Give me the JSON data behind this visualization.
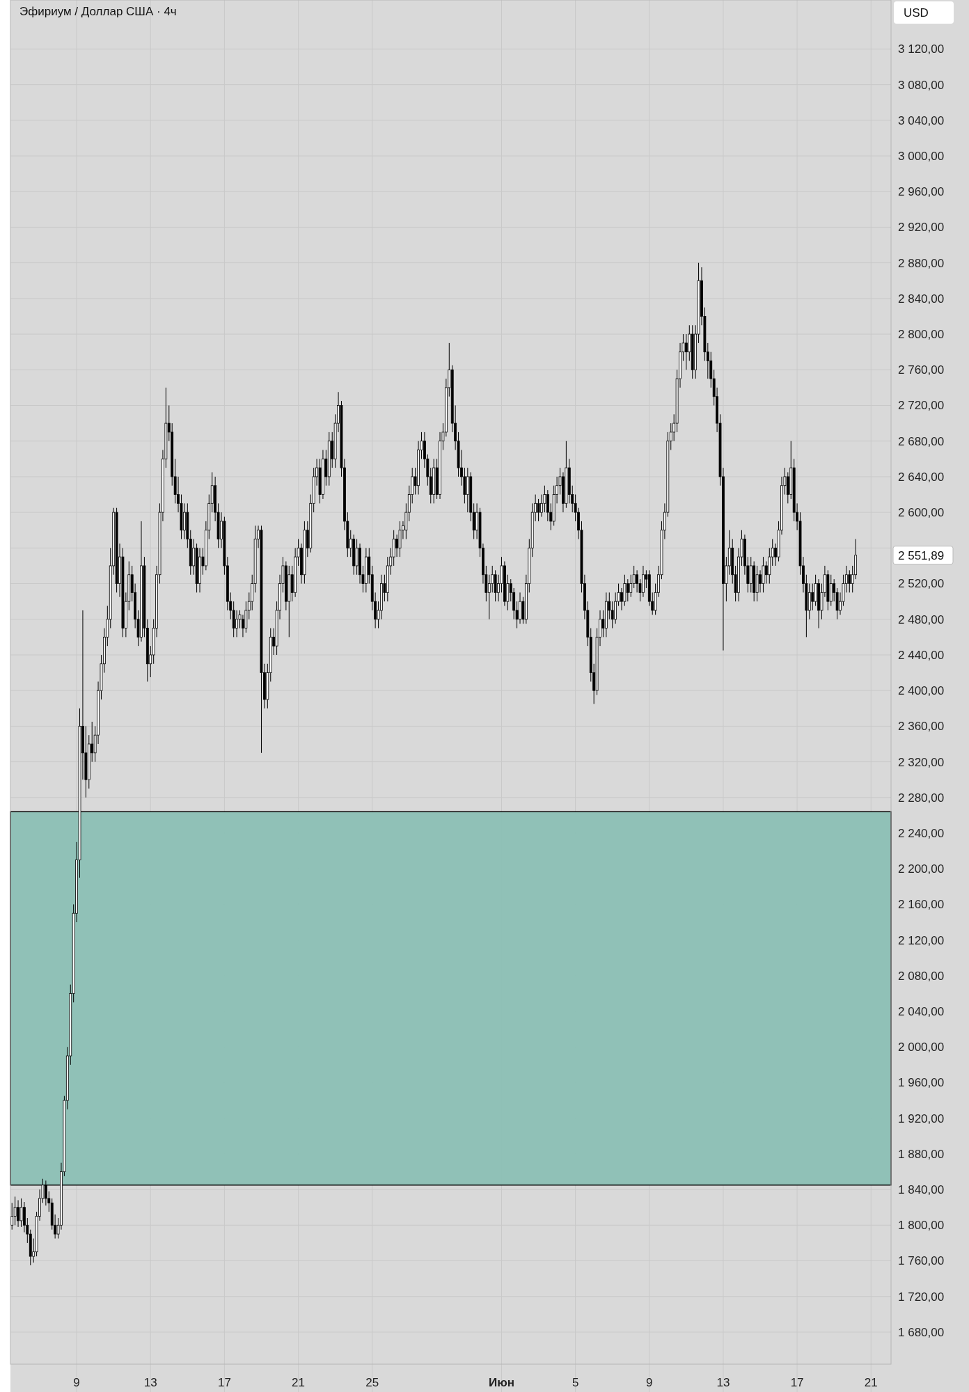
{
  "chart_data": {
    "type": "candlestick",
    "title": "Эфириум / Доллар США · 4ч",
    "ylabel": "USD",
    "grid": true,
    "ylim": [
      1644,
      3175
    ],
    "yticks": [
      {
        "value": 1680,
        "label": "1 680,00"
      },
      {
        "value": 1720,
        "label": "1 720,00"
      },
      {
        "value": 1760,
        "label": "1 760,00"
      },
      {
        "value": 1800,
        "label": "1 800,00"
      },
      {
        "value": 1840,
        "label": "1 840,00"
      },
      {
        "value": 1880,
        "label": "1 880,00"
      },
      {
        "value": 1920,
        "label": "1 920,00"
      },
      {
        "value": 1960,
        "label": "1 960,00"
      },
      {
        "value": 2000,
        "label": "2 000,00"
      },
      {
        "value": 2040,
        "label": "2 040,00"
      },
      {
        "value": 2080,
        "label": "2 080,00"
      },
      {
        "value": 2120,
        "label": "2 120,00"
      },
      {
        "value": 2160,
        "label": "2 160,00"
      },
      {
        "value": 2200,
        "label": "2 200,00"
      },
      {
        "value": 2240,
        "label": "2 240,00"
      },
      {
        "value": 2280,
        "label": "2 280,00"
      },
      {
        "value": 2320,
        "label": "2 320,00"
      },
      {
        "value": 2360,
        "label": "2 360,00"
      },
      {
        "value": 2400,
        "label": "2 400,00"
      },
      {
        "value": 2440,
        "label": "2 440,00"
      },
      {
        "value": 2480,
        "label": "2 480,00"
      },
      {
        "value": 2520,
        "label": "2 520,00"
      },
      {
        "value": 2560,
        "label": null
      },
      {
        "value": 2600,
        "label": "2 600,00"
      },
      {
        "value": 2640,
        "label": "2 640,00"
      },
      {
        "value": 2680,
        "label": "2 680,00"
      },
      {
        "value": 2720,
        "label": "2 720,00"
      },
      {
        "value": 2760,
        "label": "2 760,00"
      },
      {
        "value": 2800,
        "label": "2 800,00"
      },
      {
        "value": 2840,
        "label": "2 840,00"
      },
      {
        "value": 2880,
        "label": "2 880,00"
      },
      {
        "value": 2920,
        "label": "2 920,00"
      },
      {
        "value": 2960,
        "label": "2 960,00"
      },
      {
        "value": 3000,
        "label": "3 000,00"
      },
      {
        "value": 3040,
        "label": "3 040,00"
      },
      {
        "value": 3080,
        "label": "3 080,00"
      },
      {
        "value": 3120,
        "label": "3 120,00"
      }
    ],
    "bands": [
      {
        "axis": "y",
        "from": 1845,
        "to": 2264,
        "color": "#8cc0b5"
      }
    ],
    "annotations": [
      "2 551,89"
    ],
    "categories": [
      null,
      null,
      null,
      null,
      null,
      null,
      null,
      null,
      null,
      null,
      null,
      null,
      null,
      null,
      null,
      null,
      null,
      null,
      null,
      null,
      null,
      "9",
      null,
      null,
      null,
      null,
      null,
      null,
      null,
      null,
      null,
      null,
      null,
      null,
      null,
      null,
      null,
      null,
      null,
      null,
      null,
      null,
      null,
      null,
      null,
      "13",
      null,
      null,
      null,
      null,
      null,
      null,
      null,
      null,
      null,
      null,
      null,
      null,
      null,
      null,
      null,
      null,
      null,
      null,
      null,
      null,
      null,
      null,
      null,
      "17",
      null,
      null,
      null,
      null,
      null,
      null,
      null,
      null,
      null,
      null,
      null,
      null,
      null,
      null,
      null,
      null,
      null,
      null,
      null,
      null,
      null,
      null,
      null,
      "21",
      null,
      null,
      null,
      null,
      null,
      null,
      null,
      null,
      null,
      null,
      null,
      null,
      null,
      null,
      null,
      null,
      null,
      null,
      null,
      null,
      null,
      null,
      null,
      "25",
      null,
      null,
      null,
      null,
      null,
      null,
      null,
      null,
      null,
      null,
      null,
      null,
      null,
      null,
      null,
      null,
      null,
      null,
      null,
      null,
      null,
      null,
      null,
      null,
      null,
      null,
      null,
      null,
      null,
      null,
      null,
      null,
      null,
      null,
      null,
      null,
      null,
      null,
      null,
      null,
      null,
      "Июн",
      null,
      null,
      null,
      null,
      null,
      null,
      null,
      null,
      null,
      null,
      null,
      null,
      null,
      null,
      null,
      null,
      null,
      null,
      null,
      null,
      null,
      null,
      null,
      "5",
      null,
      null,
      null,
      null,
      null,
      null,
      null,
      null,
      null,
      null,
      null,
      null,
      null,
      null,
      null,
      null,
      null,
      null,
      null,
      null,
      null,
      null,
      null,
      "9",
      null,
      null,
      null,
      null,
      null,
      null,
      null,
      null,
      null,
      null,
      null,
      null,
      null,
      null,
      null,
      null,
      null,
      null,
      null,
      null,
      null,
      null,
      null,
      "13",
      null,
      null,
      null,
      null,
      null,
      null,
      null,
      null,
      null,
      null,
      null,
      null,
      null,
      null,
      null,
      null,
      null,
      null,
      null,
      null,
      null,
      null,
      null,
      "17",
      null,
      null,
      null,
      null,
      null,
      null,
      null,
      null,
      null,
      null,
      null,
      null,
      null,
      null,
      null,
      null,
      null,
      null,
      null,
      null,
      null,
      null,
      null,
      "21",
      null,
      null,
      null,
      null,
      null,
      null
    ],
    "ohlc": [
      [
        1800,
        1825,
        1795,
        1810
      ],
      [
        1810,
        1832,
        1800,
        1820
      ],
      [
        1820,
        1828,
        1798,
        1805
      ],
      [
        1805,
        1830,
        1798,
        1820
      ],
      [
        1820,
        1826,
        1792,
        1800
      ],
      [
        1800,
        1808,
        1780,
        1790
      ],
      [
        1790,
        1795,
        1755,
        1765
      ],
      [
        1765,
        1785,
        1758,
        1770
      ],
      [
        1770,
        1815,
        1765,
        1810
      ],
      [
        1810,
        1840,
        1805,
        1830
      ],
      [
        1830,
        1852,
        1825,
        1845
      ],
      [
        1845,
        1850,
        1822,
        1830
      ],
      [
        1830,
        1838,
        1815,
        1825
      ],
      [
        1825,
        1830,
        1795,
        1800
      ],
      [
        1800,
        1812,
        1785,
        1790
      ],
      [
        1790,
        1808,
        1785,
        1800
      ],
      [
        1800,
        1870,
        1795,
        1860
      ],
      [
        1860,
        1945,
        1855,
        1940
      ],
      [
        1940,
        2000,
        1930,
        1990
      ],
      [
        1990,
        2070,
        1980,
        2060
      ],
      [
        2060,
        2160,
        2050,
        2150
      ],
      [
        2150,
        2230,
        2140,
        2210
      ],
      [
        2210,
        2380,
        2190,
        2360
      ],
      [
        2360,
        2490,
        2300,
        2330
      ],
      [
        2330,
        2360,
        2280,
        2300
      ],
      [
        2300,
        2350,
        2290,
        2340
      ],
      [
        2340,
        2365,
        2320,
        2330
      ],
      [
        2330,
        2360,
        2320,
        2350
      ],
      [
        2350,
        2410,
        2340,
        2400
      ],
      [
        2400,
        2440,
        2390,
        2430
      ],
      [
        2430,
        2470,
        2420,
        2460
      ],
      [
        2460,
        2495,
        2450,
        2480
      ],
      [
        2480,
        2560,
        2470,
        2540
      ],
      [
        2540,
        2605,
        2530,
        2600
      ],
      [
        2600,
        2605,
        2510,
        2520
      ],
      [
        2520,
        2565,
        2505,
        2550
      ],
      [
        2550,
        2560,
        2460,
        2470
      ],
      [
        2470,
        2510,
        2460,
        2500
      ],
      [
        2500,
        2545,
        2490,
        2530
      ],
      [
        2530,
        2540,
        2500,
        2510
      ],
      [
        2510,
        2520,
        2470,
        2480
      ],
      [
        2480,
        2490,
        2450,
        2460
      ],
      [
        2460,
        2590,
        2455,
        2540
      ],
      [
        2540,
        2550,
        2460,
        2470
      ],
      [
        2470,
        2480,
        2410,
        2430
      ],
      [
        2430,
        2450,
        2415,
        2440
      ],
      [
        2440,
        2480,
        2430,
        2470
      ],
      [
        2470,
        2540,
        2460,
        2530
      ],
      [
        2530,
        2610,
        2520,
        2600
      ],
      [
        2600,
        2670,
        2590,
        2660
      ],
      [
        2660,
        2740,
        2650,
        2700
      ],
      [
        2700,
        2720,
        2680,
        2690
      ],
      [
        2690,
        2700,
        2630,
        2640
      ],
      [
        2640,
        2660,
        2610,
        2620
      ],
      [
        2620,
        2640,
        2600,
        2610
      ],
      [
        2610,
        2620,
        2570,
        2580
      ],
      [
        2580,
        2610,
        2570,
        2600
      ],
      [
        2600,
        2610,
        2560,
        2570
      ],
      [
        2570,
        2580,
        2530,
        2540
      ],
      [
        2540,
        2570,
        2530,
        2560
      ],
      [
        2560,
        2565,
        2510,
        2520
      ],
      [
        2520,
        2560,
        2510,
        2550
      ],
      [
        2550,
        2560,
        2530,
        2540
      ],
      [
        2540,
        2590,
        2535,
        2580
      ],
      [
        2580,
        2620,
        2570,
        2610
      ],
      [
        2610,
        2645,
        2600,
        2630
      ],
      [
        2630,
        2640,
        2590,
        2600
      ],
      [
        2600,
        2610,
        2560,
        2570
      ],
      [
        2570,
        2600,
        2560,
        2590
      ],
      [
        2590,
        2595,
        2530,
        2540
      ],
      [
        2540,
        2550,
        2490,
        2500
      ],
      [
        2500,
        2510,
        2480,
        2490
      ],
      [
        2490,
        2500,
        2460,
        2470
      ],
      [
        2470,
        2490,
        2460,
        2480
      ],
      [
        2480,
        2490,
        2470,
        2485
      ],
      [
        2480,
        2485,
        2460,
        2470
      ],
      [
        2470,
        2500,
        2465,
        2490
      ],
      [
        2490,
        2510,
        2480,
        2500
      ],
      [
        2500,
        2530,
        2490,
        2520
      ],
      [
        2520,
        2585,
        2510,
        2570
      ],
      [
        2570,
        2585,
        2560,
        2580
      ],
      [
        2580,
        2585,
        2330,
        2420
      ],
      [
        2420,
        2430,
        2380,
        2390
      ],
      [
        2390,
        2430,
        2380,
        2420
      ],
      [
        2420,
        2470,
        2410,
        2460
      ],
      [
        2460,
        2470,
        2440,
        2450
      ],
      [
        2450,
        2500,
        2440,
        2490
      ],
      [
        2490,
        2530,
        2480,
        2520
      ],
      [
        2520,
        2550,
        2510,
        2540
      ],
      [
        2540,
        2545,
        2490,
        2500
      ],
      [
        2500,
        2540,
        2460,
        2530
      ],
      [
        2530,
        2540,
        2500,
        2510
      ],
      [
        2510,
        2560,
        2505,
        2550
      ],
      [
        2550,
        2570,
        2540,
        2560
      ],
      [
        2560,
        2565,
        2520,
        2530
      ],
      [
        2530,
        2590,
        2520,
        2580
      ],
      [
        2580,
        2590,
        2550,
        2560
      ],
      [
        2560,
        2620,
        2555,
        2610
      ],
      [
        2610,
        2650,
        2600,
        2640
      ],
      [
        2640,
        2660,
        2630,
        2650
      ],
      [
        2650,
        2660,
        2610,
        2620
      ],
      [
        2620,
        2670,
        2615,
        2660
      ],
      [
        2660,
        2670,
        2630,
        2640
      ],
      [
        2640,
        2690,
        2630,
        2680
      ],
      [
        2680,
        2690,
        2650,
        2660
      ],
      [
        2660,
        2710,
        2650,
        2700
      ],
      [
        2700,
        2735,
        2690,
        2720
      ],
      [
        2720,
        2725,
        2640,
        2650
      ],
      [
        2650,
        2660,
        2580,
        2590
      ],
      [
        2590,
        2600,
        2550,
        2560
      ],
      [
        2560,
        2580,
        2550,
        2570
      ],
      [
        2570,
        2575,
        2530,
        2540
      ],
      [
        2540,
        2570,
        2530,
        2560
      ],
      [
        2560,
        2565,
        2520,
        2530
      ],
      [
        2530,
        2540,
        2510,
        2520
      ],
      [
        2520,
        2560,
        2510,
        2550
      ],
      [
        2550,
        2560,
        2520,
        2530
      ],
      [
        2530,
        2540,
        2490,
        2500
      ],
      [
        2500,
        2510,
        2470,
        2480
      ],
      [
        2480,
        2500,
        2470,
        2490
      ],
      [
        2490,
        2530,
        2480,
        2520
      ],
      [
        2520,
        2530,
        2500,
        2510
      ],
      [
        2510,
        2550,
        2500,
        2540
      ],
      [
        2540,
        2560,
        2530,
        2550
      ],
      [
        2550,
        2580,
        2540,
        2570
      ],
      [
        2570,
        2575,
        2550,
        2560
      ],
      [
        2560,
        2590,
        2550,
        2580
      ],
      [
        2580,
        2590,
        2570,
        2585
      ],
      [
        2580,
        2610,
        2570,
        2600
      ],
      [
        2600,
        2630,
        2590,
        2620
      ],
      [
        2620,
        2650,
        2610,
        2640
      ],
      [
        2640,
        2650,
        2620,
        2630
      ],
      [
        2630,
        2680,
        2620,
        2670
      ],
      [
        2670,
        2690,
        2660,
        2680
      ],
      [
        2680,
        2690,
        2650,
        2660
      ],
      [
        2660,
        2665,
        2630,
        2640
      ],
      [
        2640,
        2650,
        2610,
        2620
      ],
      [
        2620,
        2660,
        2610,
        2650
      ],
      [
        2650,
        2660,
        2615,
        2620
      ],
      [
        2620,
        2690,
        2615,
        2680
      ],
      [
        2680,
        2700,
        2670,
        2690
      ],
      [
        2690,
        2750,
        2685,
        2740
      ],
      [
        2740,
        2790,
        2730,
        2760
      ],
      [
        2760,
        2765,
        2690,
        2700
      ],
      [
        2700,
        2720,
        2670,
        2680
      ],
      [
        2680,
        2690,
        2640,
        2650
      ],
      [
        2650,
        2670,
        2630,
        2640
      ],
      [
        2640,
        2650,
        2610,
        2620
      ],
      [
        2620,
        2650,
        2600,
        2640
      ],
      [
        2640,
        2645,
        2590,
        2600
      ],
      [
        2600,
        2610,
        2570,
        2580
      ],
      [
        2580,
        2610,
        2570,
        2600
      ],
      [
        2600,
        2605,
        2550,
        2560
      ],
      [
        2560,
        2565,
        2520,
        2530
      ],
      [
        2530,
        2540,
        2500,
        2510
      ],
      [
        2510,
        2530,
        2480,
        2520
      ],
      [
        2520,
        2540,
        2510,
        2530
      ],
      [
        2530,
        2535,
        2500,
        2510
      ],
      [
        2510,
        2530,
        2500,
        2520
      ],
      [
        2520,
        2550,
        2510,
        2540
      ],
      [
        2540,
        2545,
        2495,
        2500
      ],
      [
        2500,
        2530,
        2490,
        2520
      ],
      [
        2520,
        2525,
        2500,
        2510
      ],
      [
        2510,
        2515,
        2480,
        2490
      ],
      [
        2490,
        2500,
        2470,
        2480
      ],
      [
        2480,
        2510,
        2475,
        2500
      ],
      [
        2500,
        2505,
        2475,
        2480
      ],
      [
        2480,
        2530,
        2475,
        2520
      ],
      [
        2520,
        2570,
        2510,
        2560
      ],
      [
        2560,
        2610,
        2550,
        2600
      ],
      [
        2600,
        2620,
        2590,
        2610
      ],
      [
        2610,
        2615,
        2590,
        2600
      ],
      [
        2600,
        2620,
        2595,
        2610
      ],
      [
        2610,
        2630,
        2600,
        2620
      ],
      [
        2620,
        2625,
        2590,
        2600
      ],
      [
        2600,
        2610,
        2580,
        2590
      ],
      [
        2590,
        2630,
        2585,
        2620
      ],
      [
        2620,
        2640,
        2610,
        2630
      ],
      [
        2630,
        2650,
        2620,
        2640
      ],
      [
        2640,
        2645,
        2600,
        2610
      ],
      [
        2610,
        2680,
        2605,
        2650
      ],
      [
        2650,
        2660,
        2610,
        2620
      ],
      [
        2620,
        2630,
        2600,
        2610
      ],
      [
        2610,
        2620,
        2590,
        2600
      ],
      [
        2600,
        2605,
        2570,
        2580
      ],
      [
        2580,
        2590,
        2510,
        2520
      ],
      [
        2520,
        2530,
        2480,
        2490
      ],
      [
        2490,
        2500,
        2450,
        2460
      ],
      [
        2460,
        2470,
        2410,
        2420
      ],
      [
        2420,
        2430,
        2385,
        2400
      ],
      [
        2400,
        2470,
        2395,
        2460
      ],
      [
        2460,
        2490,
        2450,
        2480
      ],
      [
        2480,
        2490,
        2460,
        2470
      ],
      [
        2470,
        2510,
        2460,
        2500
      ],
      [
        2500,
        2510,
        2480,
        2490
      ],
      [
        2490,
        2500,
        2470,
        2480
      ],
      [
        2480,
        2510,
        2475,
        2500
      ],
      [
        2500,
        2520,
        2495,
        2510
      ],
      [
        2510,
        2515,
        2490,
        2500
      ],
      [
        2500,
        2530,
        2495,
        2520
      ],
      [
        2520,
        2525,
        2500,
        2510
      ],
      [
        2510,
        2530,
        2505,
        2520
      ],
      [
        2520,
        2540,
        2515,
        2530
      ],
      [
        2530,
        2535,
        2510,
        2520
      ],
      [
        2520,
        2525,
        2500,
        2510
      ],
      [
        2510,
        2540,
        2505,
        2530
      ],
      [
        2530,
        2535,
        2515,
        2525
      ],
      [
        2530,
        2535,
        2495,
        2500
      ],
      [
        2500,
        2510,
        2485,
        2490
      ],
      [
        2490,
        2520,
        2485,
        2510
      ],
      [
        2510,
        2540,
        2505,
        2530
      ],
      [
        2530,
        2590,
        2525,
        2580
      ],
      [
        2580,
        2610,
        2570,
        2600
      ],
      [
        2600,
        2690,
        2595,
        2680
      ],
      [
        2680,
        2700,
        2670,
        2690
      ],
      [
        2690,
        2710,
        2680,
        2700
      ],
      [
        2700,
        2760,
        2690,
        2750
      ],
      [
        2750,
        2790,
        2740,
        2780
      ],
      [
        2780,
        2800,
        2770,
        2790
      ],
      [
        2790,
        2800,
        2760,
        2780
      ],
      [
        2780,
        2810,
        2770,
        2800
      ],
      [
        2800,
        2810,
        2750,
        2760
      ],
      [
        2760,
        2810,
        2750,
        2800
      ],
      [
        2800,
        2880,
        2790,
        2860
      ],
      [
        2860,
        2875,
        2810,
        2820
      ],
      [
        2820,
        2830,
        2770,
        2780
      ],
      [
        2780,
        2790,
        2750,
        2770
      ],
      [
        2770,
        2780,
        2740,
        2750
      ],
      [
        2750,
        2760,
        2720,
        2730
      ],
      [
        2730,
        2740,
        2690,
        2700
      ],
      [
        2700,
        2710,
        2630,
        2640
      ],
      [
        2640,
        2650,
        2445,
        2520
      ],
      [
        2520,
        2550,
        2500,
        2540
      ],
      [
        2540,
        2580,
        2530,
        2560
      ],
      [
        2560,
        2570,
        2520,
        2530
      ],
      [
        2530,
        2540,
        2500,
        2510
      ],
      [
        2510,
        2560,
        2500,
        2550
      ],
      [
        2550,
        2580,
        2540,
        2570
      ],
      [
        2570,
        2575,
        2530,
        2540
      ],
      [
        2540,
        2550,
        2510,
        2520
      ],
      [
        2520,
        2550,
        2510,
        2540
      ],
      [
        2540,
        2545,
        2500,
        2510
      ],
      [
        2510,
        2540,
        2500,
        2530
      ],
      [
        2530,
        2535,
        2510,
        2520
      ],
      [
        2520,
        2550,
        2510,
        2540
      ],
      [
        2540,
        2545,
        2520,
        2530
      ],
      [
        2530,
        2560,
        2520,
        2550
      ],
      [
        2550,
        2570,
        2540,
        2560
      ],
      [
        2560,
        2565,
        2540,
        2550
      ],
      [
        2550,
        2590,
        2545,
        2580
      ],
      [
        2580,
        2640,
        2575,
        2630
      ],
      [
        2630,
        2650,
        2620,
        2640
      ],
      [
        2640,
        2645,
        2610,
        2620
      ],
      [
        2620,
        2680,
        2615,
        2650
      ],
      [
        2650,
        2660,
        2590,
        2600
      ],
      [
        2600,
        2610,
        2580,
        2590
      ],
      [
        2590,
        2600,
        2530,
        2540
      ],
      [
        2540,
        2550,
        2510,
        2520
      ],
      [
        2520,
        2530,
        2460,
        2490
      ],
      [
        2490,
        2520,
        2480,
        2510
      ],
      [
        2510,
        2520,
        2490,
        2500
      ],
      [
        2500,
        2530,
        2495,
        2520
      ],
      [
        2520,
        2525,
        2470,
        2490
      ],
      [
        2490,
        2520,
        2480,
        2510
      ],
      [
        2510,
        2540,
        2505,
        2530
      ],
      [
        2530,
        2535,
        2490,
        2500
      ],
      [
        2500,
        2530,
        2495,
        2520
      ],
      [
        2520,
        2525,
        2500,
        2510
      ],
      [
        2510,
        2515,
        2480,
        2490
      ],
      [
        2490,
        2510,
        2485,
        2500
      ],
      [
        2500,
        2530,
        2495,
        2520
      ],
      [
        2520,
        2540,
        2510,
        2530
      ],
      [
        2530,
        2535,
        2510,
        2520
      ],
      [
        2520,
        2540,
        2510,
        2530
      ],
      [
        2530,
        2570,
        2525,
        2551.89
      ],
      null,
      null,
      null,
      null,
      null,
      null,
      null,
      null,
      null,
      null,
      null
    ]
  }
}
